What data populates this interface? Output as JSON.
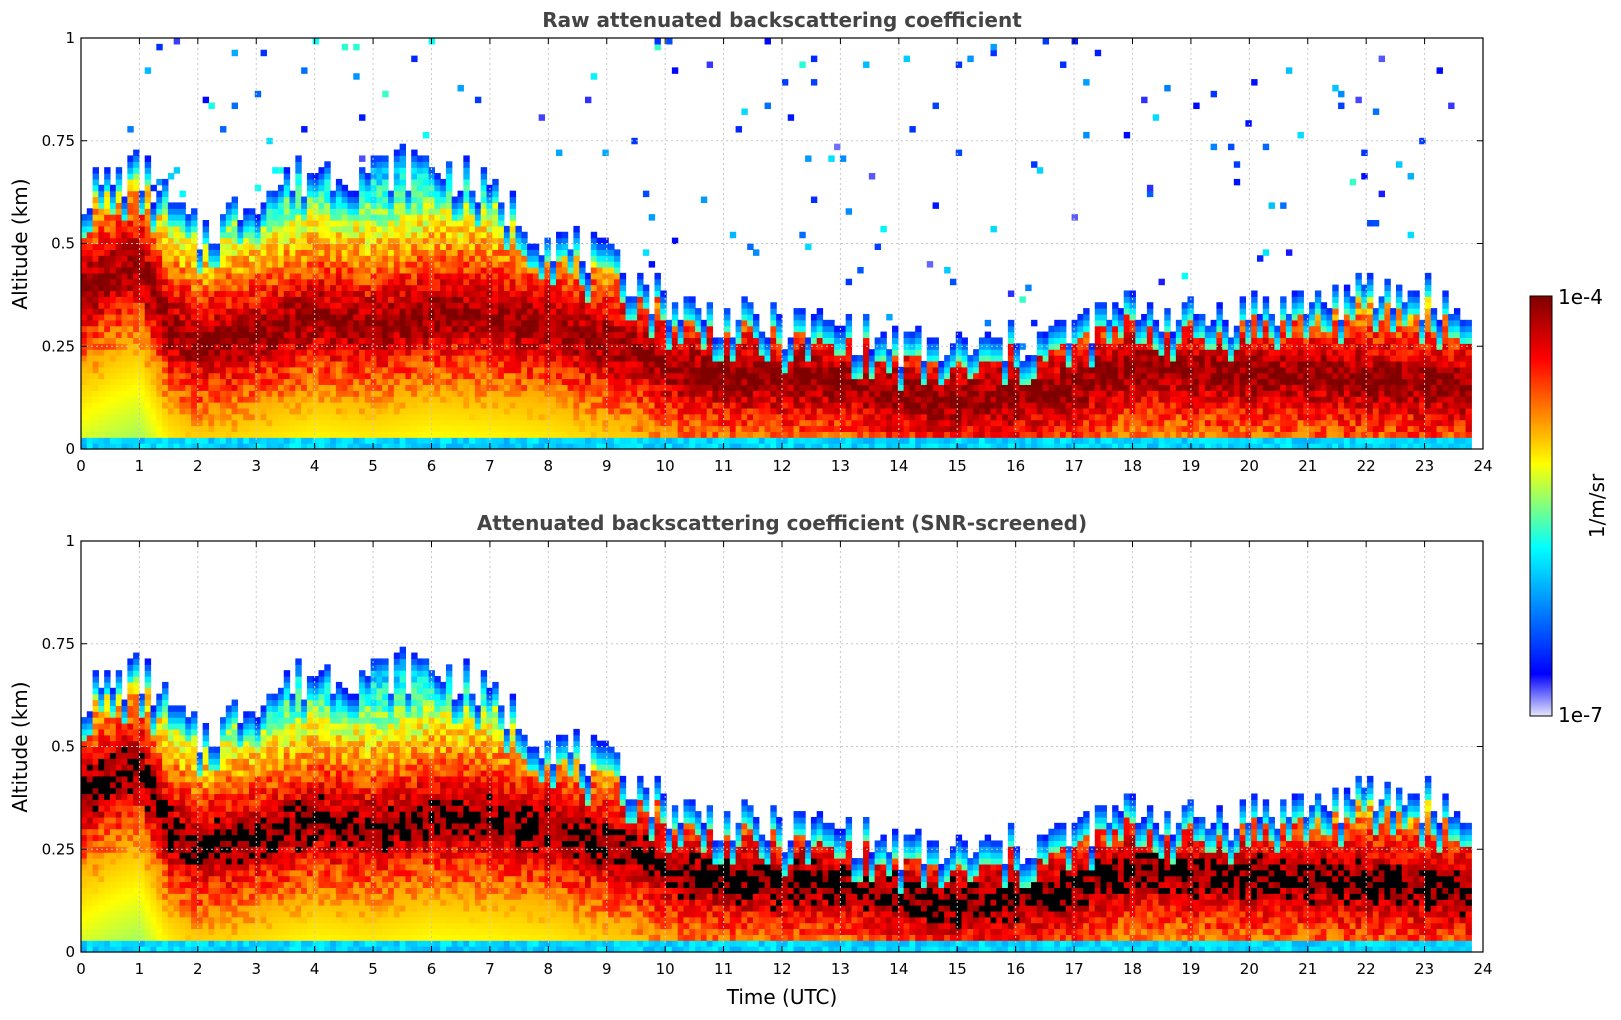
{
  "colors": {
    "jet": [
      "#e6e6fa",
      "#0000ff",
      "#00ffff",
      "#ffff00",
      "#ff0000",
      "#800000"
    ],
    "saturated": "#000000",
    "grid": "#c8c8c8",
    "title": "#444444"
  },
  "colorbar": {
    "label": "1/m/sr",
    "max_label": "1e-4",
    "min_label": "1e-7",
    "scale": "log",
    "range": [
      1e-07,
      0.0001
    ]
  },
  "chart_data": [
    {
      "type": "heatmap",
      "title": "Raw attenuated backscattering coefficient",
      "xlabel": "",
      "ylabel": "Altitude (km)",
      "xlim": [
        0,
        24
      ],
      "ylim": [
        0,
        1
      ],
      "xticks": [
        "0",
        "1",
        "2",
        "3",
        "4",
        "5",
        "6",
        "7",
        "8",
        "9",
        "10",
        "11",
        "12",
        "13",
        "14",
        "15",
        "16",
        "17",
        "18",
        "19",
        "20",
        "21",
        "22",
        "23",
        "24"
      ],
      "yticks": [
        "0",
        "0.25",
        "0.5",
        "0.75",
        "1"
      ],
      "grid": true,
      "screened": false,
      "x_hours": [
        0,
        0.5,
        1,
        1.5,
        2,
        3,
        4,
        5,
        6,
        7,
        8,
        9,
        9.5,
        10,
        11,
        12,
        13,
        14,
        15,
        16,
        17,
        18,
        19,
        20,
        21,
        22,
        23,
        23.8
      ],
      "layer_center_km": [
        0.38,
        0.42,
        0.45,
        0.3,
        0.25,
        0.28,
        0.32,
        0.3,
        0.33,
        0.32,
        0.3,
        0.26,
        0.24,
        0.2,
        0.18,
        0.17,
        0.17,
        0.13,
        0.12,
        0.13,
        0.15,
        0.2,
        0.19,
        0.18,
        0.18,
        0.17,
        0.16,
        0.15
      ],
      "layer_top_km": [
        0.62,
        0.65,
        0.68,
        0.6,
        0.52,
        0.62,
        0.68,
        0.68,
        0.7,
        0.62,
        0.52,
        0.45,
        0.42,
        0.36,
        0.32,
        0.3,
        0.3,
        0.25,
        0.24,
        0.26,
        0.29,
        0.35,
        0.32,
        0.34,
        0.36,
        0.38,
        0.38,
        0.31
      ]
    },
    {
      "type": "heatmap",
      "title": "Attenuated backscattering coefficient (SNR-screened)",
      "xlabel": "Time (UTC)",
      "ylabel": "Altitude (km)",
      "xlim": [
        0,
        24
      ],
      "ylim": [
        0,
        1
      ],
      "xticks": [
        "0",
        "1",
        "2",
        "3",
        "4",
        "5",
        "6",
        "7",
        "8",
        "9",
        "10",
        "11",
        "12",
        "13",
        "14",
        "15",
        "16",
        "17",
        "18",
        "19",
        "20",
        "21",
        "22",
        "23",
        "24"
      ],
      "yticks": [
        "0",
        "0.25",
        "0.5",
        "0.75",
        "1"
      ],
      "grid": true,
      "screened": true,
      "x_hours": [
        0,
        0.5,
        1,
        1.5,
        2,
        3,
        4,
        5,
        6,
        7,
        8,
        9,
        9.5,
        10,
        11,
        12,
        13,
        14,
        15,
        16,
        17,
        18,
        19,
        20,
        21,
        22,
        23,
        23.8
      ],
      "layer_center_km": [
        0.38,
        0.42,
        0.45,
        0.3,
        0.25,
        0.28,
        0.32,
        0.3,
        0.33,
        0.32,
        0.3,
        0.26,
        0.24,
        0.2,
        0.18,
        0.17,
        0.17,
        0.13,
        0.12,
        0.13,
        0.15,
        0.2,
        0.19,
        0.18,
        0.18,
        0.17,
        0.16,
        0.15
      ],
      "layer_top_km": [
        0.62,
        0.65,
        0.68,
        0.6,
        0.52,
        0.62,
        0.68,
        0.68,
        0.7,
        0.62,
        0.52,
        0.45,
        0.42,
        0.36,
        0.32,
        0.3,
        0.3,
        0.25,
        0.24,
        0.26,
        0.29,
        0.35,
        0.32,
        0.34,
        0.36,
        0.38,
        0.38,
        0.31
      ]
    }
  ]
}
